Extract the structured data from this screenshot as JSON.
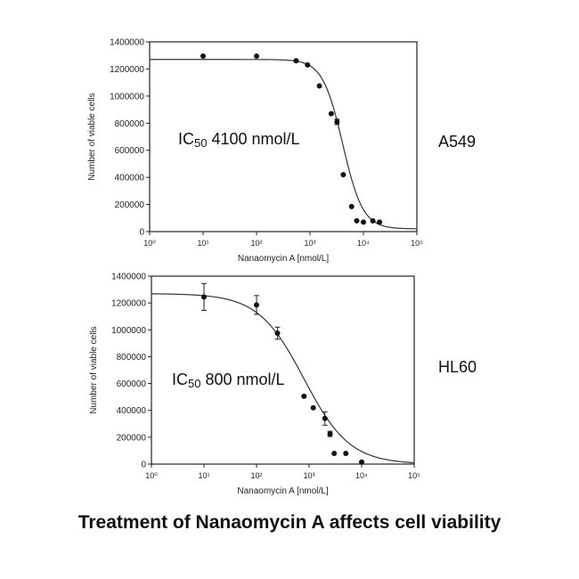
{
  "caption": "Treatment of Nanaomycin A affects cell viability",
  "chart_data": [
    {
      "type": "scatter",
      "xscale": "log",
      "xlim": [
        1,
        100000
      ],
      "ylim": [
        0,
        1400000
      ],
      "x_ticks": [
        1,
        10,
        100,
        1000,
        10000,
        100000
      ],
      "y_ticks": [
        0,
        200000,
        400000,
        600000,
        800000,
        1000000,
        1200000,
        1400000
      ],
      "y_tick_labels": [
        "0",
        "200000",
        "400000",
        "600000",
        "800000",
        "1000000",
        "1200000",
        "1400000"
      ],
      "xlabel": "Nanaomycin A [nmol/L]",
      "ylabel": "Number of viable cells",
      "annotation": "IC50 4100 nmol/L",
      "side_label": "A549",
      "ic50": 4100,
      "fit": {
        "top": 1270000,
        "bottom": 20000,
        "hill": 2.3
      },
      "series": [
        {
          "x": [
            10,
            100,
            550,
            900,
            1500,
            2500,
            3200,
            4200,
            6000,
            7500,
            10000,
            15000,
            20000
          ],
          "y": [
            1295000,
            1295000,
            1260000,
            1230000,
            1075000,
            870000,
            810000,
            420000,
            185000,
            80000,
            70000,
            80000,
            70000
          ],
          "yerr": [
            0,
            0,
            0,
            0,
            0,
            0,
            20000,
            0,
            0,
            0,
            0,
            0,
            0
          ]
        }
      ]
    },
    {
      "type": "scatter",
      "xscale": "log",
      "xlim": [
        1,
        100000
      ],
      "ylim": [
        0,
        1400000
      ],
      "x_ticks": [
        1,
        10,
        100,
        1000,
        10000,
        100000
      ],
      "y_ticks": [
        0,
        200000,
        400000,
        600000,
        800000,
        1000000,
        1200000,
        1400000
      ],
      "y_tick_labels": [
        "0",
        "200000",
        "400000",
        "600000",
        "800000",
        "1000000",
        "1200000",
        "1400000"
      ],
      "xlabel": "Nanaomycin A [nmol/L]",
      "ylabel": "Number of viable cells",
      "annotation": "IC50 800 nmol/L",
      "side_label": "HL60",
      "ic50": 800,
      "fit": {
        "top": 1270000,
        "bottom": 0,
        "hill": 1.0
      },
      "series": [
        {
          "x": [
            10,
            100,
            250,
            800,
            1200,
            2000,
            2500,
            3000,
            5000,
            10000
          ],
          "y": [
            1245000,
            1185000,
            975000,
            505000,
            420000,
            340000,
            225000,
            80000,
            80000,
            15000
          ],
          "yerr": [
            100000,
            70000,
            45000,
            0,
            0,
            50000,
            20000,
            0,
            0,
            0
          ]
        }
      ]
    }
  ]
}
